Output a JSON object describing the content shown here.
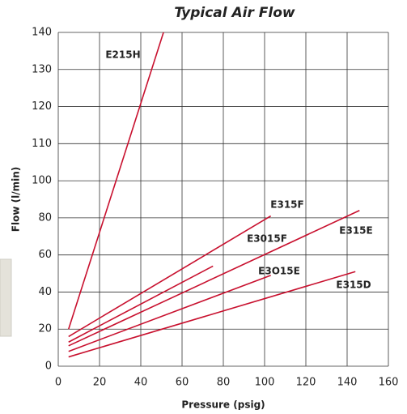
{
  "chart_data": {
    "type": "line",
    "title": "Typical Air Flow",
    "x_label": "Pressure (psig)",
    "y_label": "Flow (l/min)",
    "xlim": [
      0,
      160
    ],
    "xticks": [
      0,
      20,
      40,
      60,
      80,
      100,
      120,
      140,
      160
    ],
    "ylim": [
      0,
      140
    ],
    "yticks": [
      0,
      20,
      40,
      60,
      80,
      100,
      110,
      120,
      130,
      140
    ],
    "grid": true,
    "series": [
      {
        "name": "E215H",
        "color": "#c8102e",
        "x": [
          5,
          51
        ],
        "values": [
          20,
          140
        ]
      },
      {
        "name": "E315F",
        "color": "#c8102e",
        "x": [
          5,
          103
        ],
        "values": [
          16,
          81
        ]
      },
      {
        "name": "E3015F",
        "color": "#c8102e",
        "x": [
          5,
          75
        ],
        "values": [
          13,
          54
        ]
      },
      {
        "name": "E315E",
        "color": "#c8102e",
        "x": [
          5,
          146
        ],
        "values": [
          11,
          84
        ]
      },
      {
        "name": "E3O15E",
        "color": "#c8102e",
        "x": [
          5,
          103
        ],
        "values": [
          8,
          49
        ]
      },
      {
        "name": "E315D",
        "color": "#c8102e",
        "x": [
          5,
          144
        ],
        "values": [
          5,
          51
        ]
      }
    ]
  }
}
